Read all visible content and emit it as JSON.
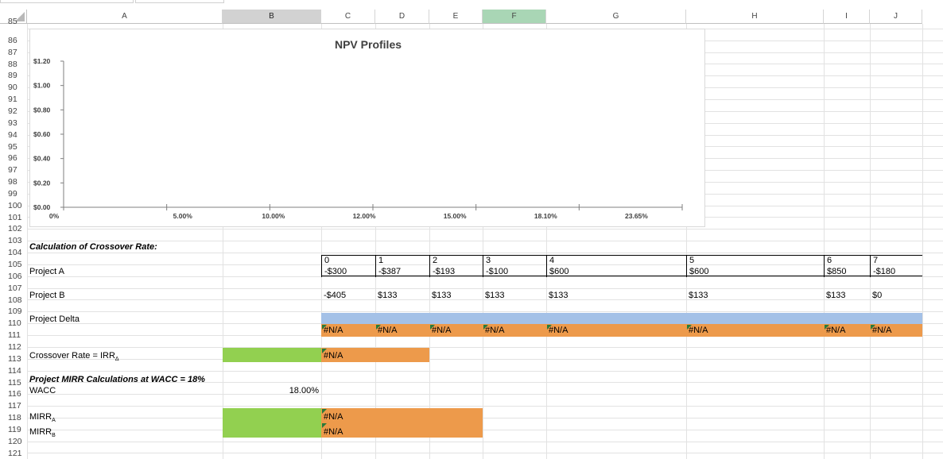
{
  "columns": [
    "A",
    "B",
    "C",
    "D",
    "E",
    "F",
    "G",
    "H",
    "I",
    "J"
  ],
  "rows": [
    "85",
    "86",
    "87",
    "88",
    "89",
    "90",
    "91",
    "92",
    "93",
    "94",
    "95",
    "96",
    "97",
    "98",
    "99",
    "100",
    "101",
    "102",
    "103",
    "104",
    "105",
    "106",
    "107",
    "108",
    "109",
    "110",
    "111",
    "112",
    "113",
    "114",
    "115",
    "116",
    "117",
    "118",
    "119",
    "120",
    "121"
  ],
  "cells": {
    "crossover_heading": "Calculation of Crossover Rate:",
    "project_a_label": "Project A",
    "project_b_label": "Project B",
    "project_delta_label": "Project Delta",
    "periods": [
      "0",
      "1",
      "2",
      "3",
      "4",
      "5",
      "6",
      "7"
    ],
    "project_a_values": [
      "-$300",
      "-$387",
      "-$193",
      "-$100",
      "$600",
      "$600",
      "$850",
      "-$180"
    ],
    "project_b_values": [
      "-$405",
      "$133",
      "$133",
      "$133",
      "$133",
      "$133",
      "$133",
      "$0"
    ],
    "delta_values": [
      "#N/A",
      "#N/A",
      "#N/A",
      "#N/A",
      "#N/A",
      "#N/A",
      "#N/A",
      "#N/A"
    ],
    "crossover_label": "Crossover Rate = IRR",
    "crossover_sub": "Δ",
    "crossover_value": "#N/A",
    "mirr_heading": "Project MIRR Calculations at WACC = 18%",
    "wacc_label": "WACC",
    "wacc_value": "18.00%",
    "mirr_a_label": "MIRR",
    "mirr_a_sub": "A",
    "mirr_a_value": "#N/A",
    "mirr_b_label": "MIRR",
    "mirr_b_sub": "B",
    "mirr_b_value": "#N/A"
  },
  "chart_data": {
    "type": "line",
    "title": "NPV Profiles",
    "categories": [
      "0%",
      "5.00%",
      "10.00%",
      "12.00%",
      "15.00%",
      "18.10%",
      "23.65%"
    ],
    "y_tick_labels": [
      "$0.00",
      "$0.20",
      "$0.40",
      "$0.60",
      "$0.80",
      "$1.00",
      "$1.20"
    ],
    "ylim": [
      0,
      1.2
    ],
    "series": []
  }
}
